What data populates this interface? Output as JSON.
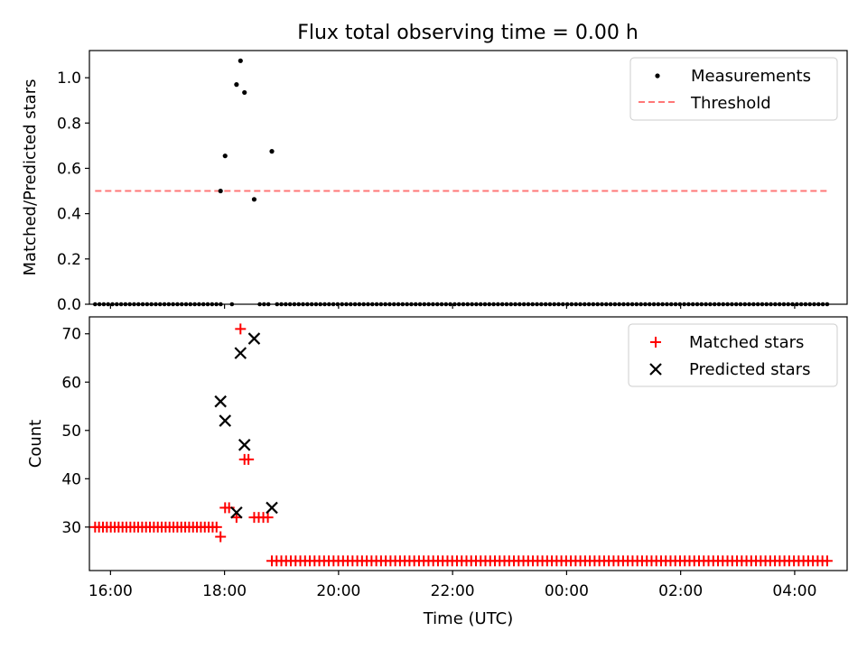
{
  "title": "Flux total observing time = 0.00 h",
  "colors": {
    "measure": "#000000",
    "threshold": "#ff7777",
    "matched": "#ff0000",
    "predicted": "#000000"
  },
  "chart_data": [
    {
      "type": "scatter",
      "ylabel": "Matched/Predicted stars",
      "xlim": [
        15.63,
        28.92
      ],
      "ylim": [
        0.0,
        1.12
      ],
      "yticks": [
        0.0,
        0.2,
        0.4,
        0.6,
        0.8,
        1.0
      ],
      "ytick_labels": [
        "0.0",
        "0.2",
        "0.4",
        "0.6",
        "0.8",
        "1.0"
      ],
      "legend_position": "top-right",
      "legend": [
        "Measurements",
        "Threshold"
      ],
      "threshold": {
        "y": 0.5,
        "x_range": [
          15.73,
          28.57
        ]
      },
      "measurements_nonzero": [
        {
          "x": 17.93,
          "y": 0.5
        },
        {
          "x": 18.01,
          "y": 0.655
        },
        {
          "x": 18.21,
          "y": 0.97
        },
        {
          "x": 18.28,
          "y": 1.075
        },
        {
          "x": 18.35,
          "y": 0.935
        },
        {
          "x": 18.52,
          "y": 0.463
        },
        {
          "x": 18.83,
          "y": 0.675
        }
      ],
      "zero_measurements": {
        "x_start": 15.73,
        "x_end": 28.57,
        "count": 170,
        "gaps": [
          [
            17.95,
            18.1
          ],
          [
            18.15,
            18.6
          ],
          [
            18.8,
            18.9
          ]
        ]
      }
    },
    {
      "type": "scatter",
      "xlabel": "Time (UTC)",
      "ylabel": "Count",
      "xlim": [
        15.63,
        28.92
      ],
      "ylim": [
        21.0,
        73.5
      ],
      "yticks": [
        30,
        40,
        50,
        60,
        70
      ],
      "ytick_labels": [
        "30",
        "40",
        "50",
        "60",
        "70"
      ],
      "xticks": [
        16,
        18,
        20,
        22,
        24,
        26,
        28
      ],
      "xtick_labels": [
        "16:00",
        "18:00",
        "20:00",
        "22:00",
        "00:00",
        "02:00",
        "04:00"
      ],
      "legend_position": "top-right",
      "legend": [
        "Matched stars",
        "Predicted stars"
      ],
      "matched_points": [
        {
          "x": 17.93,
          "y": 28
        },
        {
          "x": 18.01,
          "y": 34
        },
        {
          "x": 18.08,
          "y": 34
        },
        {
          "x": 18.21,
          "y": 32
        },
        {
          "x": 18.28,
          "y": 71
        },
        {
          "x": 18.35,
          "y": 44
        },
        {
          "x": 18.42,
          "y": 44
        },
        {
          "x": 18.52,
          "y": 32
        },
        {
          "x": 18.6,
          "y": 32
        },
        {
          "x": 18.68,
          "y": 32
        },
        {
          "x": 18.76,
          "y": 32
        }
      ],
      "matched_runs": [
        {
          "x_start": 15.73,
          "x_end": 17.86,
          "y": 30,
          "count": 32
        },
        {
          "x_start": 18.83,
          "x_end": 28.57,
          "y": 23,
          "count": 118
        }
      ],
      "predicted_points": [
        {
          "x": 17.93,
          "y": 56
        },
        {
          "x": 18.01,
          "y": 52
        },
        {
          "x": 18.21,
          "y": 33
        },
        {
          "x": 18.28,
          "y": 66
        },
        {
          "x": 18.35,
          "y": 47
        },
        {
          "x": 18.52,
          "y": 69
        },
        {
          "x": 18.83,
          "y": 34
        }
      ]
    }
  ]
}
